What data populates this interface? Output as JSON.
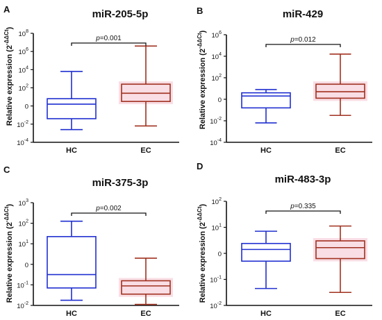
{
  "colors": {
    "hc": "#1f2fd0",
    "ec": "#a0301f",
    "ec_glow": "#f4c2cf",
    "axis": "#111111"
  },
  "chart_data": [
    {
      "type": "boxplot",
      "panel_label": "A",
      "title": "miR-205-5p",
      "ylabel": "Relative expression (2",
      "ylabel_sup": "-ΔΔCt",
      "ylabel_close": ")",
      "categories": [
        "HC",
        "EC"
      ],
      "y_ticks": [
        {
          "base": "10",
          "exp": "-4",
          "log": -4
        },
        {
          "base": "10",
          "exp": "-2",
          "log": -2
        },
        {
          "base": "0",
          "exp": "",
          "log": 0
        },
        {
          "base": "10",
          "exp": "2",
          "log": 2
        },
        {
          "base": "10",
          "exp": "4",
          "log": 4
        },
        {
          "base": "10",
          "exp": "6",
          "log": 6
        },
        {
          "base": "10",
          "exp": "8",
          "log": 8
        }
      ],
      "ylim_log": [
        -4,
        8
      ],
      "series": [
        {
          "category": "HC",
          "whisker_low": -2.6,
          "q1": -1.4,
          "median": 0.2,
          "q3": 0.8,
          "whisker_high": 3.8
        },
        {
          "category": "EC",
          "whisker_low": -2.2,
          "q1": 0.5,
          "median": 1.4,
          "q3": 2.4,
          "whisker_high": 6.6
        }
      ],
      "p_label": "p",
      "p_value": "=0.001",
      "bracket_log": 7.4
    },
    {
      "type": "boxplot",
      "panel_label": "B",
      "title": "miR-429",
      "ylabel": "Relative expression (2",
      "ylabel_sup": "-ΔΔCt",
      "ylabel_close": ")",
      "categories": [
        "HC",
        "EC"
      ],
      "y_ticks": [
        {
          "base": "10",
          "exp": "-4",
          "log": -4
        },
        {
          "base": "10",
          "exp": "-2",
          "log": -2
        },
        {
          "base": "0",
          "exp": "",
          "log": 0
        },
        {
          "base": "10",
          "exp": "2",
          "log": 2
        },
        {
          "base": "10",
          "exp": "4",
          "log": 4
        },
        {
          "base": "10",
          "exp": "6",
          "log": 6
        }
      ],
      "ylim_log": [
        -4,
        6
      ],
      "series": [
        {
          "category": "HC",
          "whisker_low": -2.2,
          "q1": -0.8,
          "median": 0.3,
          "q3": 0.6,
          "whisker_high": 0.9
        },
        {
          "category": "EC",
          "whisker_low": -1.5,
          "q1": 0.1,
          "median": 0.7,
          "q3": 1.4,
          "whisker_high": 4.2
        }
      ],
      "p_label": "p",
      "p_value": "=0.012",
      "bracket_log": 5.0
    },
    {
      "type": "boxplot",
      "panel_label": "C",
      "title": "miR-375-3p",
      "ylabel": "Relative expression (2",
      "ylabel_sup": "-ΔΔCt",
      "ylabel_close": ")",
      "categories": [
        "HC",
        "EC"
      ],
      "y_ticks": [
        {
          "base": "10",
          "exp": "-2",
          "log": -2
        },
        {
          "base": "10",
          "exp": "-1",
          "log": -1
        },
        {
          "base": "0",
          "exp": "",
          "log": 0
        },
        {
          "base": "10",
          "exp": "1",
          "log": 1
        },
        {
          "base": "10",
          "exp": "2",
          "log": 2
        },
        {
          "base": "10",
          "exp": "3",
          "log": 3
        }
      ],
      "ylim_log": [
        -2,
        3
      ],
      "series": [
        {
          "category": "HC",
          "whisker_low": -1.75,
          "q1": -1.15,
          "median": -0.5,
          "q3": 1.35,
          "whisker_high": 2.1
        },
        {
          "category": "EC",
          "whisker_low": -1.95,
          "q1": -1.45,
          "median": -1.05,
          "q3": -0.8,
          "whisker_high": 0.3
        }
      ],
      "p_label": "p",
      "p_value": "=0.002",
      "bracket_log": 2.55
    },
    {
      "type": "boxplot",
      "panel_label": "D",
      "title": "miR-483-3p",
      "ylabel": "Relative expression (2",
      "ylabel_sup": "-ΔΔCt",
      "ylabel_close": ")",
      "categories": [
        "HC",
        "EC"
      ],
      "y_ticks": [
        {
          "base": "10",
          "exp": "-2",
          "log": -2
        },
        {
          "base": "10",
          "exp": "-1",
          "log": -1
        },
        {
          "base": "0",
          "exp": "",
          "log": 0
        },
        {
          "base": "10",
          "exp": "1",
          "log": 1
        },
        {
          "base": "10",
          "exp": "2",
          "log": 2
        }
      ],
      "ylim_log": [
        -2,
        2
      ],
      "series": [
        {
          "category": "HC",
          "whisker_low": -1.35,
          "q1": -0.3,
          "median": 0.15,
          "q3": 0.38,
          "whisker_high": 0.85
        },
        {
          "category": "EC",
          "whisker_low": -1.5,
          "q1": -0.2,
          "median": 0.22,
          "q3": 0.48,
          "whisker_high": 1.05
        }
      ],
      "p_label": "p",
      "p_value": "=0.335",
      "bracket_log": 1.55
    }
  ]
}
